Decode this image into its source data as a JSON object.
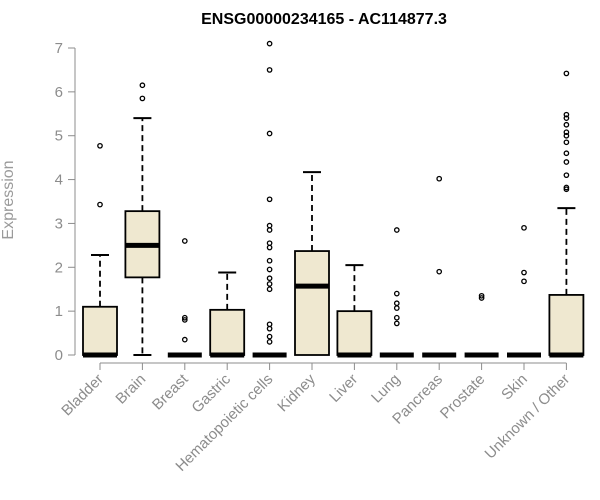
{
  "chart_data": {
    "type": "boxplot",
    "title": "ENSG00000234165 - AC114877.3",
    "xlabel": "",
    "ylabel": "Expression",
    "ylim": [
      0,
      7
    ],
    "yticks": [
      0,
      1,
      2,
      3,
      4,
      5,
      6,
      7
    ],
    "grid": false,
    "colors": {
      "box_fill": "#EFE8D0",
      "stroke": "#000000",
      "axis": "#8c8c8c"
    },
    "categories": [
      "Bladder",
      "Brain",
      "Breast",
      "Gastric",
      "Hematopoietic cells",
      "Kidney",
      "Liver",
      "Lung",
      "Pancreas",
      "Prostate",
      "Skin",
      "Unknown / Other"
    ],
    "boxes": [
      {
        "label": "Bladder",
        "whisker_low": 0,
        "q1": 0,
        "median": 0,
        "q3": 1.1,
        "whisker_high": 2.28,
        "outliers": [
          3.43,
          4.77
        ]
      },
      {
        "label": "Brain",
        "whisker_low": 0,
        "q1": 1.77,
        "median": 2.5,
        "q3": 3.28,
        "whisker_high": 5.4,
        "outliers": [
          5.85,
          6.15
        ]
      },
      {
        "label": "Breast",
        "whisker_low": 0,
        "q1": 0,
        "median": 0,
        "q3": 0,
        "whisker_high": 0,
        "outliers": [
          0.35,
          0.8,
          0.85,
          2.6
        ]
      },
      {
        "label": "Gastric",
        "whisker_low": 0,
        "q1": 0,
        "median": 0,
        "q3": 1.03,
        "whisker_high": 1.88,
        "outliers": []
      },
      {
        "label": "Hematopoietic cells",
        "whisker_low": 0,
        "q1": 0,
        "median": 0,
        "q3": 0,
        "whisker_high": 0,
        "outliers": [
          0.3,
          0.42,
          0.6,
          0.7,
          1.5,
          1.62,
          1.75,
          1.95,
          2.15,
          2.45,
          2.55,
          2.85,
          2.95,
          3.55,
          5.05,
          6.5,
          7.1
        ]
      },
      {
        "label": "Kidney",
        "whisker_low": 0,
        "q1": 0,
        "median": 1.57,
        "q3": 2.37,
        "whisker_high": 4.17,
        "outliers": []
      },
      {
        "label": "Liver",
        "whisker_low": 0,
        "q1": 0,
        "median": 0,
        "q3": 1.0,
        "whisker_high": 2.05,
        "outliers": []
      },
      {
        "label": "Lung",
        "whisker_low": 0,
        "q1": 0,
        "median": 0,
        "q3": 0,
        "whisker_high": 0,
        "outliers": [
          0.72,
          0.85,
          1.07,
          1.18,
          1.4,
          2.85
        ]
      },
      {
        "label": "Pancreas",
        "whisker_low": 0,
        "q1": 0,
        "median": 0,
        "q3": 0,
        "whisker_high": 0,
        "outliers": [
          1.9,
          4.02
        ]
      },
      {
        "label": "Prostate",
        "whisker_low": 0,
        "q1": 0,
        "median": 0,
        "q3": 0,
        "whisker_high": 0,
        "outliers": [
          1.3,
          1.35
        ]
      },
      {
        "label": "Skin",
        "whisker_low": 0,
        "q1": 0,
        "median": 0,
        "q3": 0,
        "whisker_high": 0,
        "outliers": [
          1.68,
          1.88,
          2.9
        ]
      },
      {
        "label": "Unknown / Other",
        "whisker_low": 0,
        "q1": 0,
        "median": 0,
        "q3": 1.37,
        "whisker_high": 3.35,
        "outliers": [
          3.78,
          3.82,
          4.1,
          4.4,
          4.6,
          4.85,
          5.0,
          5.08,
          5.25,
          5.4,
          5.48,
          6.42
        ]
      }
    ]
  }
}
